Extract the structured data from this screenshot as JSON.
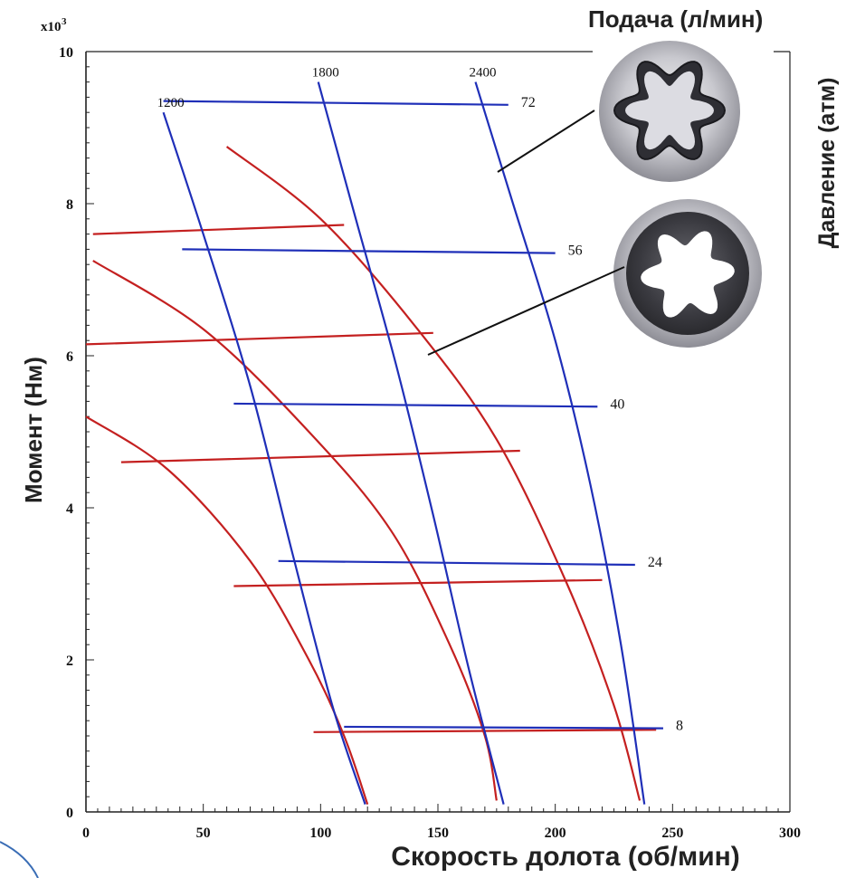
{
  "chart_data": {
    "type": "line",
    "xlabel": "Скорость долота (об/мин)",
    "ylabel": "Момент (Нм)",
    "y2label": "Давление (атм)",
    "top_label": "Подача (л/мин)",
    "y_multiplier": "x10",
    "y_multiplier_exp": "3",
    "xlim": [
      0,
      300
    ],
    "ylim": [
      0,
      10
    ],
    "x_ticks": [
      "0",
      "50",
      "100",
      "150",
      "200",
      "250",
      "300"
    ],
    "y_ticks": [
      "0",
      "2",
      "4",
      "6",
      "8",
      "10"
    ],
    "blue_series": {
      "color": "#1f2fb8",
      "flow_lines": [
        {
          "label": "1200",
          "points": [
            [
              33,
              9.2
            ],
            [
              50,
              7.6
            ],
            [
              70,
              5.6
            ],
            [
              88,
              3.4
            ],
            [
              105,
              1.4
            ],
            [
              119,
              0.1
            ]
          ]
        },
        {
          "label": "1800",
          "points": [
            [
              99,
              9.6
            ],
            [
              115,
              7.8
            ],
            [
              132,
              5.9
            ],
            [
              148,
              3.9
            ],
            [
              163,
              1.9
            ],
            [
              178,
              0.1
            ]
          ]
        },
        {
          "label": "2400",
          "points": [
            [
              166,
              9.6
            ],
            [
              182,
              8.0
            ],
            [
              200,
              6.2
            ],
            [
              215,
              4.3
            ],
            [
              228,
              2.2
            ],
            [
              238,
              0.1
            ]
          ]
        }
      ],
      "pressure_lines": [
        {
          "label": "72",
          "points": [
            [
              33,
              9.35
            ],
            [
              180,
              9.3
            ]
          ]
        },
        {
          "label": "56",
          "points": [
            [
              41,
              7.4
            ],
            [
              200,
              7.35
            ]
          ]
        },
        {
          "label": "40",
          "points": [
            [
              63,
              5.37
            ],
            [
              218,
              5.33
            ]
          ]
        },
        {
          "label": "24",
          "points": [
            [
              82,
              3.3
            ],
            [
              234,
              3.25
            ]
          ]
        },
        {
          "label": "8",
          "points": [
            [
              110,
              1.12
            ],
            [
              246,
              1.1
            ]
          ]
        }
      ]
    },
    "red_series": {
      "color": "#c42020",
      "torque_speed_curves": [
        {
          "points": [
            [
              60,
              8.75
            ],
            [
              100,
              7.8
            ],
            [
              140,
              6.4
            ],
            [
              175,
              4.9
            ],
            [
              205,
              3.0
            ],
            [
              225,
              1.4
            ],
            [
              236,
              0.15
            ]
          ]
        },
        {
          "points": [
            [
              3,
              7.25
            ],
            [
              50,
              6.35
            ],
            [
              95,
              5.0
            ],
            [
              130,
              3.7
            ],
            [
              155,
              2.2
            ],
            [
              170,
              1.0
            ],
            [
              175,
              0.15
            ]
          ]
        },
        {
          "points": [
            [
              0,
              5.2
            ],
            [
              35,
              4.5
            ],
            [
              70,
              3.3
            ],
            [
              95,
              2.0
            ],
            [
              110,
              1.0
            ],
            [
              120,
              0.1
            ]
          ]
        }
      ],
      "pressure_lines": [
        {
          "points": [
            [
              3,
              7.6
            ],
            [
              110,
              7.72
            ]
          ]
        },
        {
          "points": [
            [
              0,
              6.15
            ],
            [
              148,
              6.3
            ]
          ]
        },
        {
          "points": [
            [
              15,
              4.6
            ],
            [
              185,
              4.75
            ]
          ]
        },
        {
          "points": [
            [
              63,
              2.97
            ],
            [
              220,
              3.05
            ]
          ]
        },
        {
          "points": [
            [
              97,
              1.05
            ],
            [
              243,
              1.08
            ]
          ]
        }
      ]
    }
  },
  "illustrations": {
    "upper_stator": "rotor-stator-cross-section-metal",
    "lower_stator": "rotor-stator-cross-section-elastomer"
  }
}
